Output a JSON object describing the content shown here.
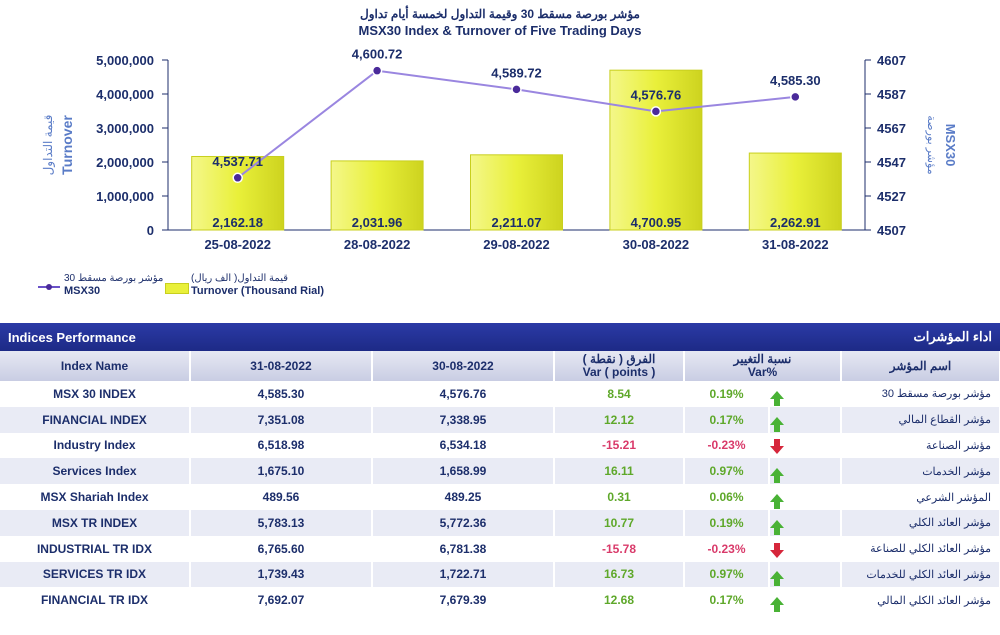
{
  "chart_data": {
    "type": "bar+line",
    "title_ar": "مؤشر بورصة مسقط 30 وقيمة التداول لخمسة أيام تداول",
    "title_en": "MSX30 Index & Turnover of Five Trading Days",
    "categories": [
      "25-08-2022",
      "28-08-2022",
      "29-08-2022",
      "30-08-2022",
      "31-08-2022"
    ],
    "series": [
      {
        "name": "Turnover (Thousand Rial)",
        "name_ar": "قيمة التداول( الف ريال)",
        "axis": "left",
        "type": "bar",
        "values": [
          2162.18,
          2031.96,
          2211.07,
          4700.95,
          2262.91
        ],
        "labels": [
          "2,162.18",
          "2,031.96",
          "2,211.07",
          "4,700.95",
          "2,262.91"
        ]
      },
      {
        "name": "MSX30",
        "name_ar": "مؤشر بورصة مسقط 30",
        "axis": "right",
        "type": "line",
        "values": [
          4537.71,
          4600.72,
          4589.72,
          4576.76,
          4585.3
        ],
        "labels": [
          "4,537.71",
          "4,600.72",
          "4,589.72",
          "4,576.76",
          "4,585.30"
        ]
      }
    ],
    "y_left": {
      "label_ar": "قيمة التداول",
      "label_en": "Turnover",
      "min": 0,
      "max": 5000000,
      "ticks": [
        "0",
        "1,000,000",
        "2,000,000",
        "3,000,000",
        "4,000,000",
        "5,000,000"
      ]
    },
    "y_right": {
      "label_ar": "مؤشر بورصة",
      "label_en": "MSX30",
      "min": 4507,
      "max": 4607,
      "ticks": [
        "4507",
        "4527",
        "4547",
        "4567",
        "4587",
        "4607"
      ]
    },
    "colors": {
      "bar": "#e9f03a",
      "bar_edge": "#c8cf1e",
      "line": "#9a86e0",
      "marker": "#4a2a9a",
      "axis": "#1c2e6b"
    }
  },
  "legend": {
    "line_ar": "مؤشر بورصة مسقط 30",
    "line_en": "MSX30",
    "bar_ar": "قيمة التداول( الف ريال)",
    "bar_en": "Turnover (Thousand Rial)"
  },
  "table": {
    "title_en": "Indices Performance",
    "title_ar": "اداء المؤشرات",
    "headers": {
      "name": "Index Name",
      "date1": "31-08-2022",
      "date2": "30-08-2022",
      "var_ar": "الفرق ( نقطة )",
      "var_en": "Var ( points )",
      "pct_ar": "نسبة التغيير",
      "pct_en": "Var%",
      "name_ar": "اسم المؤشر"
    },
    "rows": [
      {
        "name": "MSX 30 INDEX",
        "v1": "4,585.30",
        "v2": "4,576.76",
        "var": "8.54",
        "pct": "0.19%",
        "dir": "up",
        "name_ar": "مؤشر بورصة مسقط 30"
      },
      {
        "name": "FINANCIAL INDEX",
        "v1": "7,351.08",
        "v2": "7,338.95",
        "var": "12.12",
        "pct": "0.17%",
        "dir": "up",
        "name_ar": "مؤشر القطاع المالي"
      },
      {
        "name": "Industry Index",
        "v1": "6,518.98",
        "v2": "6,534.18",
        "var": "-15.21",
        "pct": "-0.23%",
        "dir": "down",
        "name_ar": "مؤشر الصناعة"
      },
      {
        "name": "Services Index",
        "v1": "1,675.10",
        "v2": "1,658.99",
        "var": "16.11",
        "pct": "0.97%",
        "dir": "up",
        "name_ar": "مؤشر الخدمات"
      },
      {
        "name": "MSX Shariah Index",
        "v1": "489.56",
        "v2": "489.25",
        "var": "0.31",
        "pct": "0.06%",
        "dir": "up",
        "name_ar": "المؤشر الشرعي"
      },
      {
        "name": "MSX TR INDEX",
        "v1": "5,783.13",
        "v2": "5,772.36",
        "var": "10.77",
        "pct": "0.19%",
        "dir": "up",
        "name_ar": "مؤشر العائد الكلي"
      },
      {
        "name": "INDUSTRIAL TR IDX",
        "v1": "6,765.60",
        "v2": "6,781.38",
        "var": "-15.78",
        "pct": "-0.23%",
        "dir": "down",
        "name_ar": "مؤشر العائد الكلي للصناعة"
      },
      {
        "name": "SERVICES TR IDX",
        "v1": "1,739.43",
        "v2": "1,722.71",
        "var": "16.73",
        "pct": "0.97%",
        "dir": "up",
        "name_ar": "مؤشر العائد الكلي للخدمات"
      },
      {
        "name": "FINANCIAL TR IDX",
        "v1": "7,692.07",
        "v2": "7,679.39",
        "var": "12.68",
        "pct": "0.17%",
        "dir": "up",
        "name_ar": "مؤشر العائد الكلي المالي"
      }
    ]
  }
}
